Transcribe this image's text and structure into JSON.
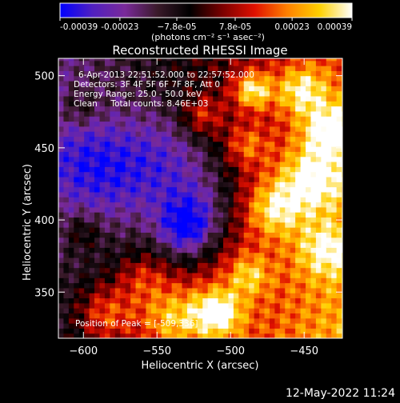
{
  "chart_data": {
    "type": "heatmap",
    "title": "Reconstructed RHESSI Image",
    "xlabel": "Heliocentric X (arcsec)",
    "ylabel": "Heliocentric Y (arcsec)",
    "xlim": [
      -617,
      -424
    ],
    "ylim": [
      318,
      512
    ],
    "x_ticks": [
      -600,
      -550,
      -500,
      -450
    ],
    "y_ticks": [
      350,
      400,
      450,
      500
    ],
    "colorbar": {
      "range": [
        -0.00039,
        0.00039
      ],
      "tick_values": [
        -0.00039,
        -0.00023,
        -7.8e-05,
        7.8e-05,
        0.00023,
        0.00039
      ],
      "tick_labels": [
        "-0.00039",
        "-0.00023",
        "−7.8e-05",
        "7.8e-05",
        "0.00023",
        "0.00039"
      ],
      "unit_label": "(photons cm⁻² s⁻¹ asec⁻²)",
      "colors": [
        "#0000ff",
        "#5020c0",
        "#7a2a9a",
        "#3a1a2a",
        "#000000",
        "#7a0000",
        "#e01000",
        "#ff8000",
        "#ffd000",
        "#ffffff"
      ]
    },
    "annotations": [
      "6-Apr-2013 22:51:52.000 to 22:57:52.000",
      "Detectors: 3F 4F 5F 6F 7F 8F, Att 0",
      "Energy Range: 25.0 - 50.0 keV",
      "Clean     Total counts: 8.46E+03"
    ],
    "peak_label": "Position of Peak = [-509,336]",
    "peak": [
      -509,
      336
    ],
    "minimum": [
      -530,
      393
    ]
  },
  "footer": {
    "timestamp": "12-May-2022 11:24"
  }
}
